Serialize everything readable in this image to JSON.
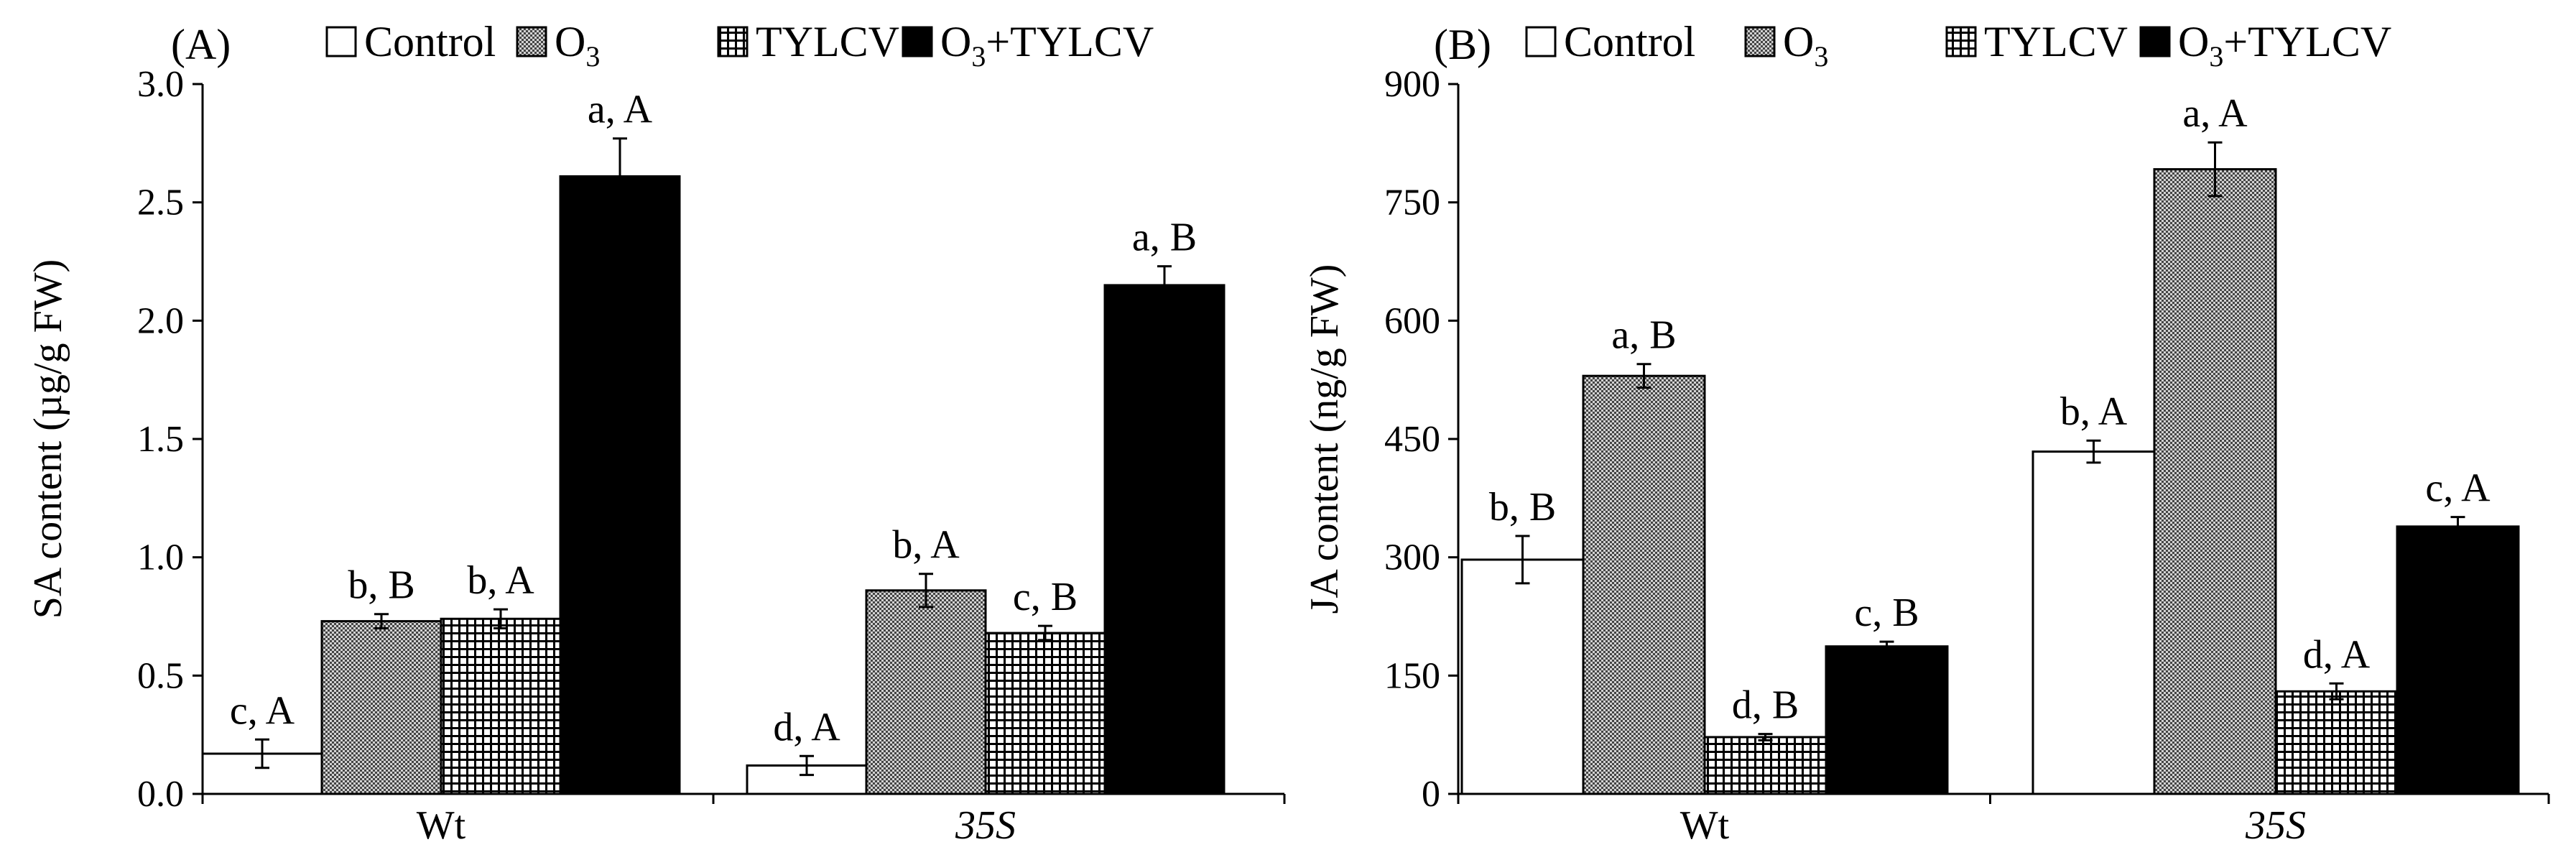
{
  "chart_data": [
    {
      "type": "bar",
      "panel_label": "(A)",
      "ylabel": "SA content (µg/g FW)",
      "ylim": [
        0,
        3.0
      ],
      "yticks": [
        "0.0",
        "0.5",
        "1.0",
        "1.5",
        "2.0",
        "2.5",
        "3.0"
      ],
      "categories": [
        "Wt",
        "35S"
      ],
      "category_italic": [
        false,
        true
      ],
      "series": [
        {
          "legend": [
            "Control"
          ],
          "values": [
            0.17,
            0.12
          ],
          "errors": [
            0.06,
            0.04
          ],
          "labels": [
            "c, A",
            "d, A"
          ]
        },
        {
          "legend": [
            "O",
            "3"
          ],
          "values": [
            0.73,
            0.86
          ],
          "errors": [
            0.03,
            0.07
          ],
          "labels": [
            "b, B",
            "b, A"
          ]
        },
        {
          "legend": [
            "TYLCV"
          ],
          "values": [
            0.74,
            0.68
          ],
          "errors": [
            0.04,
            0.03
          ],
          "labels": [
            "b, A",
            "c, B"
          ]
        },
        {
          "legend": [
            "O",
            "3",
            "+TYLCV"
          ],
          "values": [
            2.61,
            2.15
          ],
          "errors": [
            0.16,
            0.08
          ],
          "labels": [
            "a, A",
            "a, B"
          ]
        }
      ]
    },
    {
      "type": "bar",
      "panel_label": "(B)",
      "ylabel": "JA content (ng/g FW)",
      "ylim": [
        0,
        900
      ],
      "yticks": [
        "0",
        "150",
        "300",
        "450",
        "600",
        "750",
        "900"
      ],
      "categories": [
        "Wt",
        "35S"
      ],
      "category_italic": [
        false,
        true
      ],
      "series": [
        {
          "legend": [
            "Control"
          ],
          "values": [
            297,
            434
          ],
          "errors": [
            30,
            14
          ],
          "labels": [
            "b, B",
            "b, A"
          ]
        },
        {
          "legend": [
            "O",
            "3"
          ],
          "values": [
            530,
            792
          ],
          "errors": [
            15,
            34
          ],
          "labels": [
            "a, B",
            "a, A"
          ]
        },
        {
          "legend": [
            "TYLCV"
          ],
          "values": [
            72,
            130
          ],
          "errors": [
            4,
            10
          ],
          "labels": [
            "d, B",
            "d, A"
          ]
        },
        {
          "legend": [
            "O",
            "3",
            "+TYLCV"
          ],
          "values": [
            187,
            339
          ],
          "errors": [
            6,
            12
          ],
          "labels": [
            "c, B",
            "c, A"
          ]
        }
      ]
    }
  ]
}
